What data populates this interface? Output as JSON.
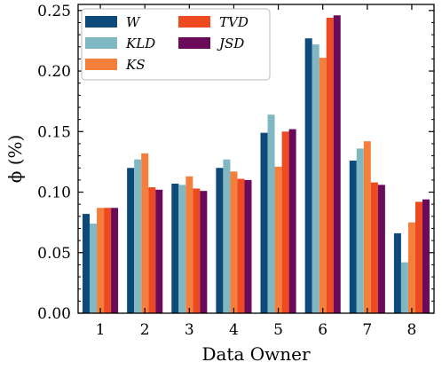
{
  "chart_data": {
    "type": "bar",
    "title": "",
    "xlabel": "Data Owner",
    "ylabel": "ϕ (%)",
    "ylim": [
      0,
      0.255
    ],
    "yticks": [
      "0.00",
      "0.05",
      "0.10",
      "0.15",
      "0.20",
      "0.25"
    ],
    "ytick_values": [
      0,
      0.05,
      0.1,
      0.15,
      0.2,
      0.25
    ],
    "categories": [
      "1",
      "2",
      "3",
      "4",
      "5",
      "6",
      "7",
      "8"
    ],
    "legend_position": "top-left",
    "series": [
      {
        "name": "W",
        "color": "#0d4a7a",
        "values": [
          0.082,
          0.12,
          0.107,
          0.12,
          0.149,
          0.227,
          0.126,
          0.066
        ]
      },
      {
        "name": "KLD",
        "color": "#7fb8c3",
        "values": [
          0.074,
          0.127,
          0.106,
          0.127,
          0.164,
          0.222,
          0.136,
          0.042
        ]
      },
      {
        "name": "KS",
        "color": "#f47f3c",
        "values": [
          0.087,
          0.132,
          0.113,
          0.117,
          0.121,
          0.211,
          0.142,
          0.075
        ]
      },
      {
        "name": "TVD",
        "color": "#ee4a22",
        "values": [
          0.087,
          0.104,
          0.103,
          0.111,
          0.15,
          0.244,
          0.108,
          0.092
        ]
      },
      {
        "name": "JSD",
        "color": "#6a0b5a",
        "values": [
          0.087,
          0.102,
          0.101,
          0.11,
          0.152,
          0.246,
          0.106,
          0.094
        ]
      }
    ]
  }
}
